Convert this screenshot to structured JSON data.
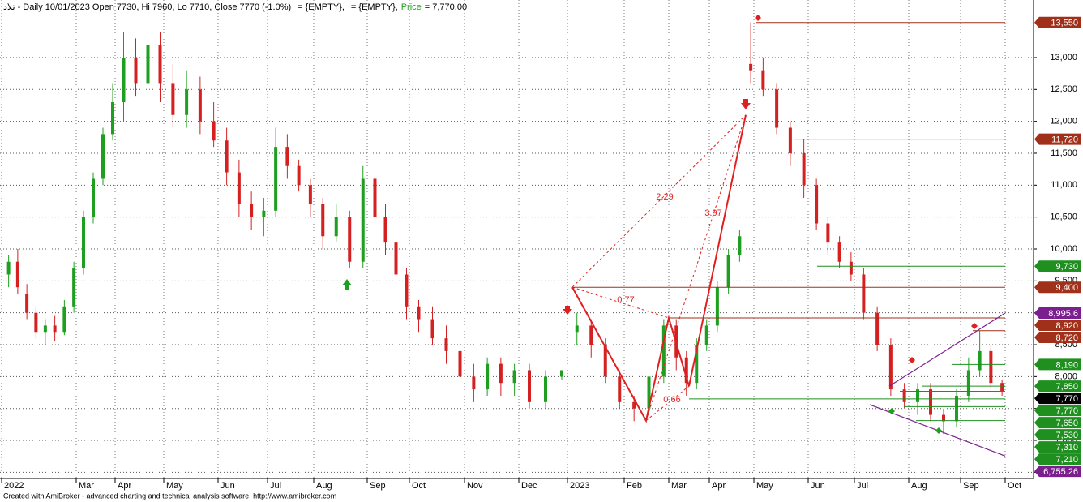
{
  "header": {
    "symbol_line": "تلاد - Daily 10/01/2023 Open 7730, Hi 7960, Lo 7710, Close 7770 (-1.0%)",
    "empty1": "= {EMPTY},",
    "empty2": "= {EMPTY},",
    "price_label": "Price",
    "price_value": "= 7,770.00"
  },
  "footer": "Created with AmiBroker - advanced charting and technical analysis software. http://www.amibroker.com",
  "chart_data": {
    "type": "candlestick",
    "ylim": [
      6403,
      13902
    ],
    "yticks": [
      {
        "value": 6500,
        "label": "6,500"
      },
      {
        "value": 7000,
        "label": "7,000"
      },
      {
        "value": 7500,
        "label": "7,500"
      },
      {
        "value": 8000,
        "label": "8,000"
      },
      {
        "value": 8500,
        "label": "8,500"
      },
      {
        "value": 9000,
        "label": "9,000"
      },
      {
        "value": 9500,
        "label": "9,500"
      },
      {
        "value": 10000,
        "label": "10,000"
      },
      {
        "value": 10500,
        "label": "10,500"
      },
      {
        "value": 11000,
        "label": "11,000"
      },
      {
        "value": 11500,
        "label": "11,500"
      },
      {
        "value": 12000,
        "label": "12,000"
      },
      {
        "value": 12500,
        "label": "12,500"
      },
      {
        "value": 13000,
        "label": "13,000"
      }
    ],
    "grid": true,
    "up_color": "#1f9f1f",
    "down_color": "#d42020",
    "months": [
      {
        "label": "2022",
        "candles": [
          [
            9600,
            9900,
            9400,
            9800
          ],
          [
            9800,
            10000,
            9300,
            9400
          ],
          [
            9300,
            9450,
            8900,
            9000
          ],
          [
            9000,
            9100,
            8600,
            8700
          ]
        ]
      },
      {
        "label": null,
        "candles": [
          [
            8700,
            8900,
            8500,
            8800
          ],
          [
            8800,
            8950,
            8550,
            8700
          ],
          [
            8700,
            9200,
            8650,
            9100
          ],
          [
            9100,
            9800,
            9000,
            9700
          ]
        ]
      },
      {
        "label": "Mar",
        "candles": [
          [
            9700,
            10600,
            9600,
            10500
          ],
          [
            10500,
            11200,
            10400,
            11100
          ],
          [
            11100,
            11900,
            11000,
            11800
          ],
          [
            11800,
            12600,
            11700,
            12300
          ]
        ]
      },
      {
        "label": "Apr",
        "candles": [
          [
            12300,
            13400,
            12000,
            13000
          ],
          [
            13000,
            13300,
            12400,
            12600
          ],
          [
            12600,
            13700,
            12500,
            13200
          ],
          [
            13200,
            13400,
            12300,
            12600
          ]
        ]
      },
      {
        "label": "May",
        "candles": [
          [
            12600,
            12900,
            11900,
            12100
          ],
          [
            12100,
            12800,
            11900,
            12500
          ],
          [
            12500,
            12700,
            11800,
            12000
          ],
          [
            12000,
            12300,
            11600,
            11700
          ]
        ]
      },
      {
        "label": "Jun",
        "candles": [
          [
            11700,
            11900,
            11000,
            11200
          ],
          [
            11200,
            11400,
            10500,
            10700
          ],
          [
            10700,
            10900,
            10300,
            10500
          ],
          [
            10500,
            10800,
            10200,
            10600
          ]
        ]
      },
      {
        "label": "Jul",
        "candles": [
          [
            10600,
            11900,
            10500,
            11600
          ],
          [
            11600,
            11800,
            11100,
            11300
          ],
          [
            11300,
            11400,
            10900,
            11000
          ],
          [
            11000,
            11100,
            10500,
            10700
          ]
        ]
      },
      {
        "label": "Aug",
        "candles": [
          [
            10700,
            10800,
            10000,
            10200
          ],
          [
            10200,
            10700,
            10100,
            10500
          ],
          [
            10500,
            10600,
            9700,
            9800
          ],
          [
            9800,
            11300,
            9700,
            11100
          ]
        ]
      },
      {
        "label": "Sep",
        "candles": [
          [
            11100,
            11400,
            10400,
            10500
          ],
          [
            10500,
            10700,
            9900,
            10100
          ],
          [
            10100,
            10200,
            9500,
            9600
          ],
          [
            9600,
            9700,
            8900,
            9100
          ]
        ]
      },
      {
        "label": "Oct",
        "candles": [
          [
            9100,
            9200,
            8700,
            8900
          ],
          [
            8900,
            9100,
            8500,
            8600
          ],
          [
            8600,
            8800,
            8200,
            8400
          ],
          [
            8400,
            8500,
            7900,
            8000
          ]
        ]
      },
      {
        "label": "Nov",
        "candles": [
          [
            8000,
            8200,
            7600,
            7800
          ],
          [
            7800,
            8300,
            7700,
            8200
          ],
          [
            8200,
            8300,
            7700,
            7900
          ],
          [
            7900,
            8200,
            7700,
            8100
          ]
        ]
      },
      {
        "label": "Dec",
        "candles": [
          [
            8100,
            8200,
            7500,
            7600
          ],
          [
            7600,
            8100,
            7500,
            8000
          ],
          [
            8000,
            8100,
            7950,
            8100
          ]
        ]
      },
      {
        "label": "2023",
        "candles": [
          [
            8700,
            9000,
            8500,
            8800
          ],
          [
            8800,
            8900,
            8300,
            8500
          ],
          [
            8500,
            8600,
            7900,
            8000
          ],
          [
            8000,
            8100,
            7500,
            7600
          ]
        ]
      },
      {
        "label": "Feb",
        "candles": [
          [
            7600,
            7700,
            7300,
            7500
          ],
          [
            7500,
            8100,
            7400,
            8000
          ],
          [
            8000,
            8900,
            7900,
            8800
          ]
        ]
      },
      {
        "label": "Mar",
        "candles": [
          [
            8800,
            8900,
            8100,
            8300
          ],
          [
            8300,
            8400,
            7700,
            7900
          ],
          [
            7900,
            8600,
            7800,
            8500
          ],
          [
            8500,
            8900,
            8400,
            8800
          ]
        ]
      },
      {
        "label": "Apr",
        "candles": [
          [
            8800,
            9500,
            8700,
            9400
          ],
          [
            9400,
            10000,
            9300,
            9900
          ],
          [
            9900,
            10300,
            9800,
            10200
          ],
          [
            12900,
            13550,
            12600,
            12800
          ]
        ]
      },
      {
        "label": "May",
        "candles": [
          [
            12800,
            13000,
            12400,
            12500
          ],
          [
            12500,
            12600,
            11800,
            11900
          ],
          [
            11900,
            12000,
            11300,
            11500
          ],
          [
            11500,
            11720,
            10800,
            11000
          ]
        ]
      },
      {
        "label": "Jun",
        "candles": [
          [
            11000,
            11100,
            10300,
            10400
          ],
          [
            10400,
            10500,
            9900,
            10100
          ],
          [
            10100,
            10200,
            9700,
            9800
          ],
          [
            9800,
            9950,
            9500,
            9600
          ]
        ]
      },
      {
        "label": "Jul",
        "candles": [
          [
            9600,
            9700,
            8900,
            9000
          ],
          [
            9000,
            9100,
            8400,
            8500
          ],
          [
            8500,
            8600,
            7700,
            7800
          ],
          [
            7800,
            7900,
            7500,
            7600
          ]
        ]
      },
      {
        "label": "Aug",
        "candles": [
          [
            7600,
            7900,
            7400,
            7800
          ],
          [
            7800,
            7900,
            7300,
            7400
          ],
          [
            7400,
            7500,
            7100,
            7300
          ],
          [
            7300,
            7800,
            7200,
            7700
          ]
        ]
      },
      {
        "label": "Sep",
        "candles": [
          [
            7700,
            8300,
            7600,
            8100
          ],
          [
            8100,
            8720,
            8000,
            8400
          ],
          [
            8400,
            8500,
            7800,
            7900
          ],
          [
            7900,
            7950,
            7700,
            7770
          ]
        ]
      },
      {
        "label": "Oct",
        "candles": []
      }
    ],
    "price_labels": [
      {
        "value": 13550,
        "label": "13,550",
        "color": "#a0301a"
      },
      {
        "value": 11720,
        "label": "11,720",
        "color": "#a0301a"
      },
      {
        "value": 9730,
        "label": "9,730",
        "color": "#1f8f1f"
      },
      {
        "value": 9400,
        "label": "9,400",
        "color": "#a0301a"
      },
      {
        "value": 8995.6,
        "label": "8,995.6",
        "color": "#7b1f8f"
      },
      {
        "value": 8920,
        "label": "8,920",
        "color": "#a0301a"
      },
      {
        "value": 8720,
        "label": "8,720",
        "color": "#a0301a"
      },
      {
        "value": 8190,
        "label": "8,190",
        "color": "#1f8f1f"
      },
      {
        "value": 7850,
        "label": "7,850",
        "color": "#1f8f1f"
      },
      {
        "value": 7770,
        "label": "7,770",
        "color": "#000000"
      },
      {
        "value": 7770,
        "label": "7,770",
        "color": "#1f8f1f"
      },
      {
        "value": 7650,
        "label": "7,650",
        "color": "#1f8f1f"
      },
      {
        "value": 7530,
        "label": "7,530",
        "color": "#1f8f1f"
      },
      {
        "value": 7310,
        "label": "7,310",
        "color": "#1f8f1f"
      },
      {
        "value": 7210,
        "label": "7,210",
        "color": "#1f8f1f"
      },
      {
        "value": 6755.26,
        "label": "6,755.26",
        "color": "#7b1f8f"
      }
    ],
    "channel": {
      "upper_start": 7850,
      "lower_start": 7560
    },
    "zigzag": [
      9400,
      7310,
      8920,
      7850,
      12100
    ],
    "ratios": [
      2.29,
      3.97,
      0.77,
      0.66
    ]
  }
}
